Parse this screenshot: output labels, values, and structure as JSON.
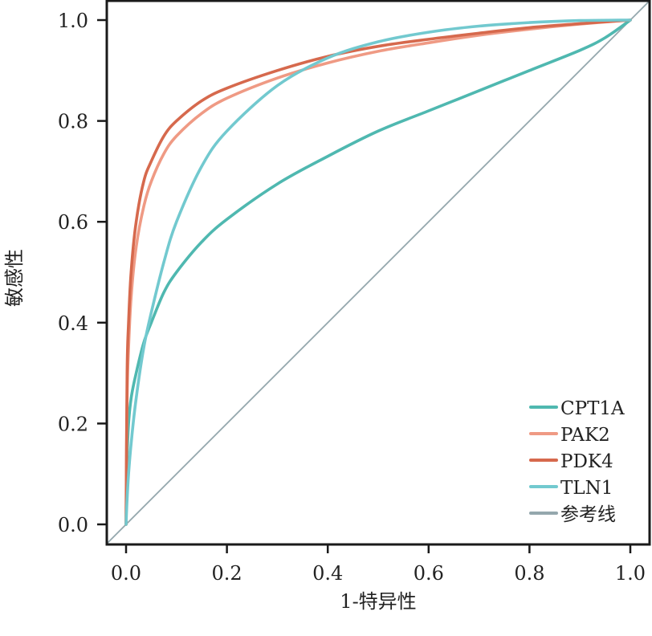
{
  "chart_data": {
    "type": "line",
    "title": "",
    "xlabel": "1-特异性",
    "ylabel": "敏感性",
    "xlim": [
      -0.04,
      1.04
    ],
    "ylim": [
      -0.04,
      1.04
    ],
    "xticks": [
      "0.0",
      "0.2",
      "0.4",
      "0.6",
      "0.8",
      "1.0"
    ],
    "yticks": [
      "0.0",
      "0.2",
      "0.4",
      "0.6",
      "0.8",
      "1.0"
    ],
    "grid": false,
    "legend_position": "bottom-right",
    "series": [
      {
        "name": "CPT1A",
        "color": "#4fb8b0",
        "x": [
          0,
          0.002,
          0.005,
          0.01,
          0.02,
          0.035,
          0.05,
          0.075,
          0.1,
          0.15,
          0.2,
          0.3,
          0.4,
          0.5,
          0.6,
          0.7,
          0.8,
          0.9,
          0.95,
          1.0
        ],
        "y": [
          0,
          0.13,
          0.2,
          0.25,
          0.3,
          0.36,
          0.4,
          0.46,
          0.5,
          0.56,
          0.605,
          0.675,
          0.73,
          0.78,
          0.82,
          0.86,
          0.9,
          0.94,
          0.965,
          1.0
        ]
      },
      {
        "name": "PAK2",
        "color": "#ef9a84",
        "x": [
          0,
          0.002,
          0.005,
          0.01,
          0.02,
          0.035,
          0.05,
          0.075,
          0.1,
          0.15,
          0.2,
          0.3,
          0.4,
          0.5,
          0.6,
          0.7,
          0.8,
          0.9,
          1.0
        ],
        "y": [
          0,
          0.25,
          0.35,
          0.45,
          0.55,
          0.63,
          0.68,
          0.735,
          0.77,
          0.815,
          0.845,
          0.885,
          0.915,
          0.938,
          0.955,
          0.97,
          0.982,
          0.992,
          1.0
        ]
      },
      {
        "name": "PDK4",
        "color": "#d6694d",
        "x": [
          0,
          0.002,
          0.005,
          0.01,
          0.02,
          0.035,
          0.05,
          0.075,
          0.1,
          0.15,
          0.2,
          0.3,
          0.4,
          0.5,
          0.6,
          0.7,
          0.8,
          0.9,
          1.0
        ],
        "y": [
          0,
          0.3,
          0.4,
          0.5,
          0.6,
          0.68,
          0.72,
          0.77,
          0.8,
          0.84,
          0.865,
          0.9,
          0.928,
          0.948,
          0.962,
          0.974,
          0.985,
          0.993,
          1.0
        ]
      },
      {
        "name": "TLN1",
        "color": "#72c9cf",
        "x": [
          0,
          0.002,
          0.005,
          0.01,
          0.02,
          0.035,
          0.05,
          0.075,
          0.1,
          0.15,
          0.2,
          0.3,
          0.4,
          0.5,
          0.6,
          0.7,
          0.8,
          0.9,
          1.0
        ],
        "y": [
          0,
          0.05,
          0.1,
          0.16,
          0.25,
          0.35,
          0.42,
          0.52,
          0.6,
          0.71,
          0.78,
          0.87,
          0.925,
          0.957,
          0.976,
          0.988,
          0.995,
          0.999,
          1.0
        ]
      },
      {
        "name": "参考线",
        "color": "#94a7ad",
        "x": [
          -0.04,
          1.04
        ],
        "y": [
          -0.04,
          1.04
        ]
      }
    ]
  }
}
